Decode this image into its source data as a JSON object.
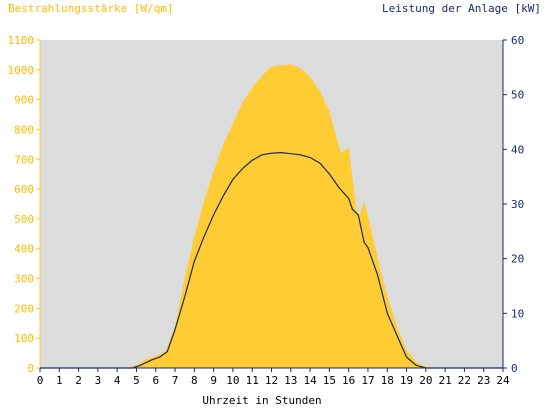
{
  "chart_data": {
    "type": "area",
    "left_axis_title": "Bestrahlungsstärke [W/qm]",
    "right_axis_title": "Leistung der Anlage [kW]",
    "xlabel": "Uhrzeit in Stunden",
    "x_ticks": [
      "0",
      "1",
      "2",
      "3",
      "4",
      "5",
      "6",
      "7",
      "8",
      "9",
      "10",
      "11",
      "12",
      "13",
      "14",
      "15",
      "16",
      "17",
      "18",
      "19",
      "20",
      "21",
      "22",
      "23",
      "24"
    ],
    "xlim": [
      0,
      24
    ],
    "y_left_ticks": [
      "0",
      "100",
      "200",
      "300",
      "400",
      "500",
      "600",
      "700",
      "800",
      "900",
      "1000",
      "1100"
    ],
    "ylim_left": [
      0,
      1100
    ],
    "y_right_ticks": [
      "0",
      "10",
      "20",
      "30",
      "40",
      "50",
      "60"
    ],
    "ylim_right": [
      0,
      60
    ],
    "grid": false,
    "series": [
      {
        "name": "Bestrahlungsstärke [W/qm]",
        "axis": "left",
        "style": "area",
        "color": "#ffcc33",
        "x": [
          0,
          4.5,
          5,
          5.5,
          6,
          6.5,
          7,
          7.5,
          8,
          8.5,
          9,
          9.5,
          10,
          10.5,
          11,
          11.5,
          12,
          12.5,
          13,
          13.5,
          14,
          14.5,
          15,
          15.3,
          15.6,
          16,
          16.3,
          16.5,
          16.8,
          17,
          17.5,
          18,
          18.5,
          19,
          19.5,
          20,
          20.5,
          21,
          24
        ],
        "values": [
          0,
          0,
          10,
          30,
          40,
          55,
          140,
          300,
          440,
          560,
          660,
          750,
          820,
          890,
          940,
          980,
          1010,
          1015,
          1018,
          1005,
          975,
          930,
          860,
          790,
          720,
          740,
          580,
          500,
          560,
          510,
          370,
          240,
          140,
          60,
          20,
          5,
          0,
          0,
          0
        ]
      },
      {
        "name": "Leistung der Anlage [kW]",
        "axis": "right",
        "style": "line",
        "color": "#1a2a5a",
        "x": [
          0,
          4.8,
          5.2,
          5.8,
          6.2,
          6.6,
          7,
          7.5,
          8,
          8.5,
          9,
          9.5,
          10,
          10.5,
          11,
          11.5,
          12,
          12.5,
          13,
          13.5,
          14,
          14.5,
          15,
          15.5,
          16,
          16.2,
          16.5,
          16.8,
          17,
          17.5,
          18,
          18.5,
          19,
          19.5,
          20,
          24
        ],
        "values": [
          0,
          0,
          0.5,
          1.5,
          2,
          3,
          7,
          13,
          19.5,
          24,
          28,
          31.5,
          34.5,
          36.5,
          38,
          39,
          39.3,
          39.4,
          39.2,
          39,
          38.5,
          37.5,
          35.5,
          33,
          31,
          29,
          28,
          23,
          22,
          17,
          10,
          6,
          2,
          0.5,
          0,
          0
        ]
      }
    ]
  }
}
